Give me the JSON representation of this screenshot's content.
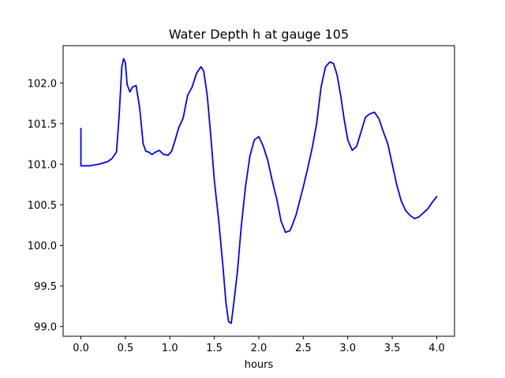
{
  "chart_data": {
    "type": "line",
    "title": "Water Depth h at gauge 105",
    "xlabel": "hours",
    "ylabel": "",
    "xlim": [
      -0.2,
      4.2
    ],
    "ylim": [
      98.88,
      102.46
    ],
    "xticks": [
      0.0,
      0.5,
      1.0,
      1.5,
      2.0,
      2.5,
      3.0,
      3.5,
      4.0
    ],
    "xtick_labels": [
      "0.0",
      "0.5",
      "1.0",
      "1.5",
      "2.0",
      "2.5",
      "3.0",
      "3.5",
      "4.0"
    ],
    "yticks": [
      99.0,
      99.5,
      100.0,
      100.5,
      101.0,
      101.5,
      102.0
    ],
    "ytick_labels": [
      "99.0",
      "99.5",
      "100.0",
      "100.5",
      "101.0",
      "101.5",
      "102.0"
    ],
    "grid": false,
    "series": [
      {
        "color": "#0000ff",
        "x": [
          0.0,
          0.0,
          0.1,
          0.2,
          0.3,
          0.35,
          0.4,
          0.43,
          0.46,
          0.48,
          0.5,
          0.52,
          0.55,
          0.58,
          0.62,
          0.66,
          0.7,
          0.73,
          0.76,
          0.8,
          0.84,
          0.88,
          0.93,
          0.98,
          1.02,
          1.06,
          1.1,
          1.15,
          1.2,
          1.25,
          1.3,
          1.35,
          1.38,
          1.42,
          1.46,
          1.5,
          1.55,
          1.6,
          1.63,
          1.66,
          1.69,
          1.72,
          1.76,
          1.8,
          1.85,
          1.9,
          1.95,
          2.0,
          2.05,
          2.1,
          2.15,
          2.2,
          2.25,
          2.3,
          2.35,
          2.38,
          2.42,
          2.46,
          2.5,
          2.55,
          2.6,
          2.65,
          2.7,
          2.75,
          2.8,
          2.84,
          2.88,
          2.92,
          2.96,
          3.0,
          3.05,
          3.1,
          3.15,
          3.2,
          3.25,
          3.3,
          3.35,
          3.4,
          3.45,
          3.5,
          3.55,
          3.6,
          3.65,
          3.7,
          3.75,
          3.8,
          3.85,
          3.9,
          3.95,
          4.0
        ],
        "y": [
          101.44,
          100.98,
          100.98,
          101.0,
          101.03,
          101.07,
          101.15,
          101.6,
          102.2,
          102.3,
          102.25,
          101.98,
          101.89,
          101.95,
          101.97,
          101.7,
          101.25,
          101.16,
          101.15,
          101.12,
          101.15,
          101.17,
          101.12,
          101.11,
          101.16,
          101.3,
          101.45,
          101.57,
          101.85,
          101.95,
          102.12,
          102.2,
          102.15,
          101.85,
          101.35,
          100.8,
          100.3,
          99.7,
          99.3,
          99.06,
          99.04,
          99.3,
          99.68,
          100.2,
          100.72,
          101.1,
          101.3,
          101.34,
          101.22,
          101.05,
          100.8,
          100.58,
          100.3,
          100.16,
          100.18,
          100.26,
          100.38,
          100.55,
          100.72,
          100.95,
          101.2,
          101.5,
          101.95,
          102.2,
          102.26,
          102.24,
          102.1,
          101.85,
          101.55,
          101.3,
          101.17,
          101.22,
          101.4,
          101.58,
          101.62,
          101.64,
          101.56,
          101.4,
          101.25,
          101.0,
          100.75,
          100.55,
          100.43,
          100.37,
          100.33,
          100.35,
          100.4,
          100.45,
          100.53,
          100.6
        ]
      }
    ]
  }
}
